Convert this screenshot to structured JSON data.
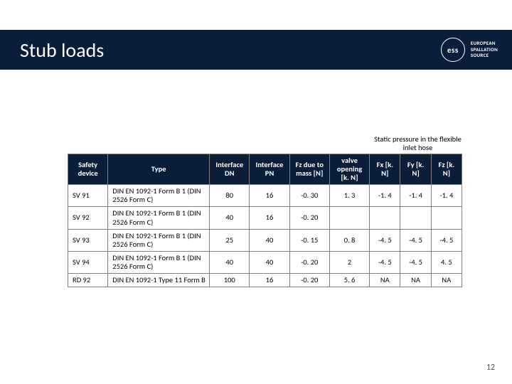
{
  "header": {
    "title": "Stub loads",
    "logo_abbr": "ess",
    "logo_line1": "EUROPEAN",
    "logo_line2": "SPALLATION",
    "logo_line3": "SOURCE"
  },
  "table": {
    "caption": "Static pressure in the flexible inlet hose",
    "columns": {
      "device": "Safety device",
      "type": "Type",
      "dn": "Interface DN",
      "pn": "Interface PN",
      "fzmass": "Fz due to mass [N]",
      "valve": "valve opening [k. N]",
      "fx": "Fx [k. N]",
      "fy": "Fy [k. N]",
      "fz": "Fz [k. N]"
    },
    "rows": [
      {
        "device": "SV 91",
        "type": "DIN EN 1092-1 Form B 1 (DIN 2526 Form C)",
        "dn": "80",
        "pn": "16",
        "fzmass": "-0. 30",
        "valve": "1. 3",
        "fx": "-1. 4",
        "fy": "-1. 4",
        "fz": "-1. 4"
      },
      {
        "device": "SV 92",
        "type": "DIN EN 1092-1 Form B 1 (DIN 2526 Form C)",
        "dn": "40",
        "pn": "16",
        "fzmass": "-0. 20",
        "valve": "",
        "fx": "",
        "fy": "",
        "fz": ""
      },
      {
        "device": "SV 93",
        "type": "DIN EN 1092-1 Form B 1 (DIN 2526 Form C)",
        "dn": "25",
        "pn": "40",
        "fzmass": "-0. 15",
        "valve": "0. 8",
        "fx": "-4. 5",
        "fy": "-4. 5",
        "fz": "-4. 5"
      },
      {
        "device": "SV 94",
        "type": "DIN EN 1092-1 Form B 1 (DIN 2526 Form C)",
        "dn": "40",
        "pn": "40",
        "fzmass": "-0. 20",
        "valve": "2",
        "fx": "-4. 5",
        "fy": "-4. 5",
        "fz": "4. 5"
      },
      {
        "device": "RD 92",
        "type": "DIN EN 1092-1 Type 11 Form B",
        "dn": "100",
        "pn": "16",
        "fzmass": "-0. 20",
        "valve": "5. 6",
        "fx": "NA",
        "fy": "NA",
        "fz": "NA"
      }
    ]
  },
  "page_number": "12",
  "style": {
    "brand_color": "#0a1e3a",
    "border_color": "#808080",
    "text_color": "#000000",
    "title_fontsize": 28,
    "table_fontsize": 10.5
  }
}
